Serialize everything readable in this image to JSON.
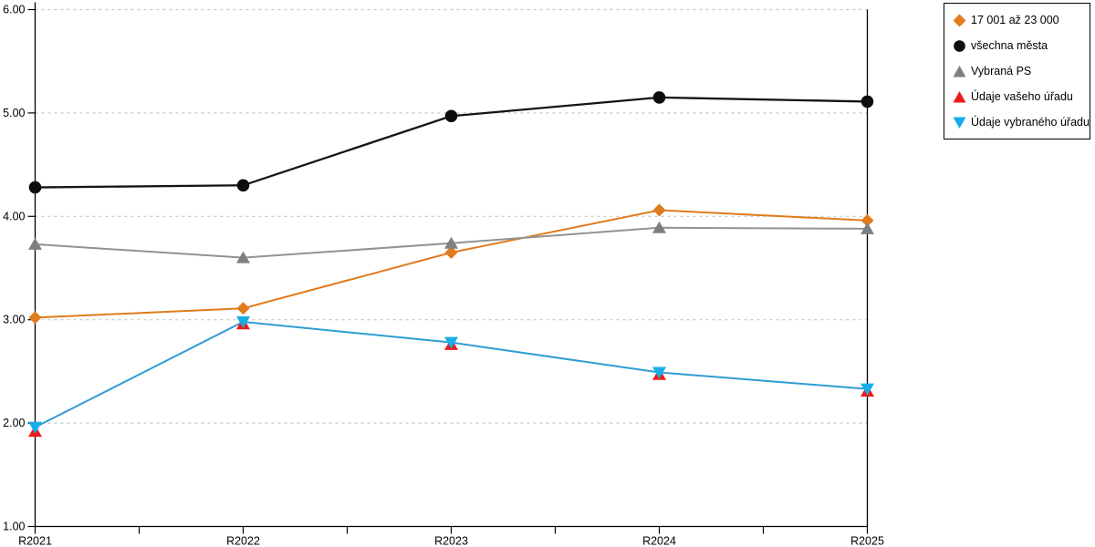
{
  "chart_data": {
    "type": "line",
    "title": "",
    "xlabel": "",
    "ylabel": "",
    "categories": [
      "R2021",
      "R2022",
      "R2023",
      "R2024",
      "R2025"
    ],
    "series": [
      {
        "name": "17 001 až 23 000",
        "color": "#E07B1E",
        "marker": "diamond",
        "marker_color": "#E07B1E",
        "line": true,
        "values": [
          3.02,
          3.11,
          3.65,
          4.06,
          3.96
        ]
      },
      {
        "name": "všechna města",
        "color": "#141414",
        "marker": "circle",
        "marker_color": "#0D0D0D",
        "line": true,
        "values": [
          4.28,
          4.3,
          4.97,
          5.15,
          5.11
        ]
      },
      {
        "name": "Vybraná PS",
        "color": "#929292",
        "marker": "triangle-up",
        "marker_color": "#7F7F7F",
        "line": true,
        "values": [
          3.73,
          3.6,
          3.74,
          3.89,
          3.88
        ]
      },
      {
        "name": "Údaje vašeho úřadu",
        "color": "#EC1C1C",
        "marker": "triangle-up",
        "marker_color": "#EC1C1C",
        "line": false,
        "values": [
          1.92,
          2.96,
          2.76,
          2.47,
          2.31
        ]
      },
      {
        "name": "Údaje vybraného úřadu",
        "color": "#2F9CD5",
        "marker": "triangle-down",
        "marker_color": "#17AEE8",
        "line": true,
        "values": [
          1.96,
          2.98,
          2.78,
          2.49,
          2.33
        ]
      }
    ],
    "ylim": [
      1,
      6
    ],
    "yticks": [
      1,
      2,
      3,
      4,
      5,
      6
    ],
    "ytick_labels": [
      "1.00",
      "2.00",
      "3.00",
      "4.00",
      "5.00",
      "6.00"
    ],
    "x_minor_ticks": "midpoints between categories",
    "grid": "horizontal dashed lines at integer y values, top gridline at 6.00, bottom is solid axis",
    "legend_position": "outside top-right, boxed"
  },
  "colors": {
    "background": "#FFFFFF",
    "axis": "#000000",
    "gridline": "#C6C6C6",
    "legend_border": "#000000"
  }
}
